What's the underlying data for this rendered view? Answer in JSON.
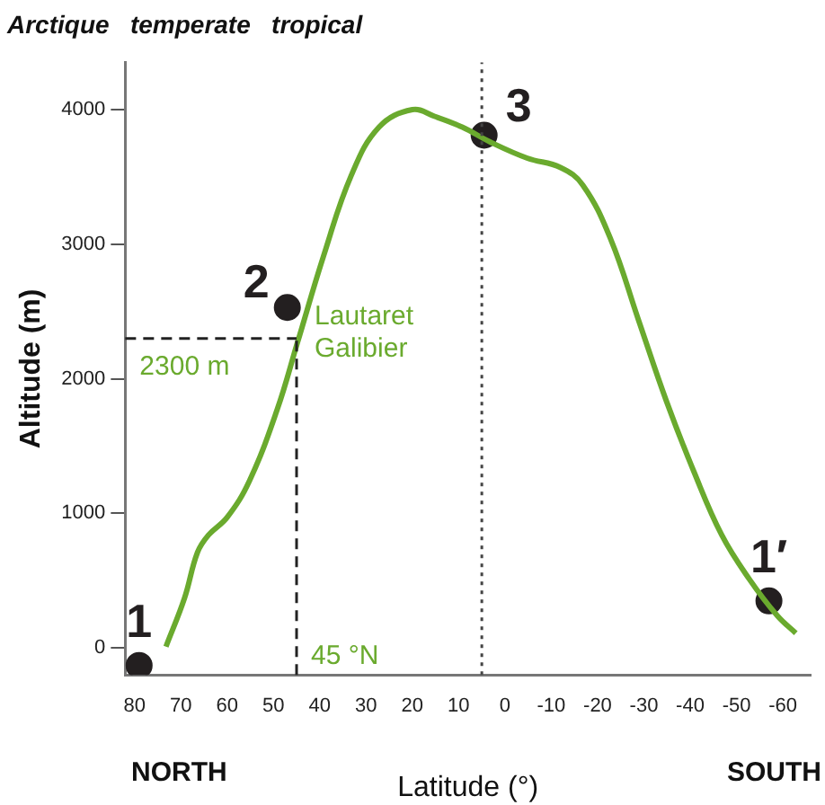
{
  "chart_data": {
    "type": "line",
    "title": "Arctique   temperate   tropical",
    "xlabel": "Latitude (°)",
    "ylabel": "Altitude (m)",
    "xlim": [
      82,
      -66
    ],
    "ylim": [
      -200,
      4350
    ],
    "xticks": [
      80,
      70,
      60,
      50,
      40,
      30,
      20,
      10,
      0,
      -10,
      -20,
      -30,
      -40,
      -50,
      -60
    ],
    "yticks": [
      0,
      1000,
      2000,
      3000,
      4000
    ],
    "grid": false,
    "legend": false,
    "marker": "none",
    "series": [
      {
        "color": "#6aaa2e",
        "x": [
          73.2,
          69.2,
          66.4,
          64,
          60,
          55.2,
          49.2,
          44.8,
          39.2,
          33.2,
          27.2,
          20,
          15.2,
          9.2,
          3.2,
          -4.8,
          -12,
          -16.8,
          -22.8,
          -28.8,
          -34.8,
          -40.8,
          -46.8,
          -52.8,
          -58.8,
          -62.8
        ],
        "values": [
          10,
          370,
          710,
          840,
          970,
          1240,
          1770,
          2270,
          2910,
          3510,
          3870,
          4000,
          3950,
          3870,
          3760,
          3640,
          3570,
          3440,
          3040,
          2440,
          1840,
          1310,
          840,
          510,
          240,
          110
        ]
      },
      {
        "type": "scatter",
        "name": "1",
        "color": "#231f20",
        "marker": "circle",
        "x": [
          79
        ],
        "values": [
          -130
        ]
      },
      {
        "type": "scatter",
        "name": "2",
        "color": "#231f20",
        "marker": "circle",
        "x": [
          47
        ],
        "values": [
          2530
        ]
      },
      {
        "type": "scatter",
        "name": "3",
        "color": "#231f20",
        "marker": "circle",
        "x": [
          4.5
        ],
        "values": [
          3810
        ]
      },
      {
        "type": "scatter",
        "name": "1′",
        "color": "#231f20",
        "marker": "circle",
        "x": [
          -57
        ],
        "values": [
          350
        ]
      }
    ],
    "ref_lines": [
      {
        "axis": "x",
        "value": 45,
        "label": "45 °N",
        "color": "#222222",
        "line_style": "dashed"
      },
      {
        "axis": "y",
        "value": 2300,
        "label": "2300 m",
        "color": "#222222",
        "line_style": "dashed"
      },
      {
        "axis": "x",
        "value": 5,
        "color": "#444444",
        "line_style": "dotted"
      }
    ],
    "annotations": [
      {
        "text": "Lautaret Galibier",
        "x": 45,
        "y": 2300
      },
      "NORTH",
      "SOUTH"
    ]
  }
}
